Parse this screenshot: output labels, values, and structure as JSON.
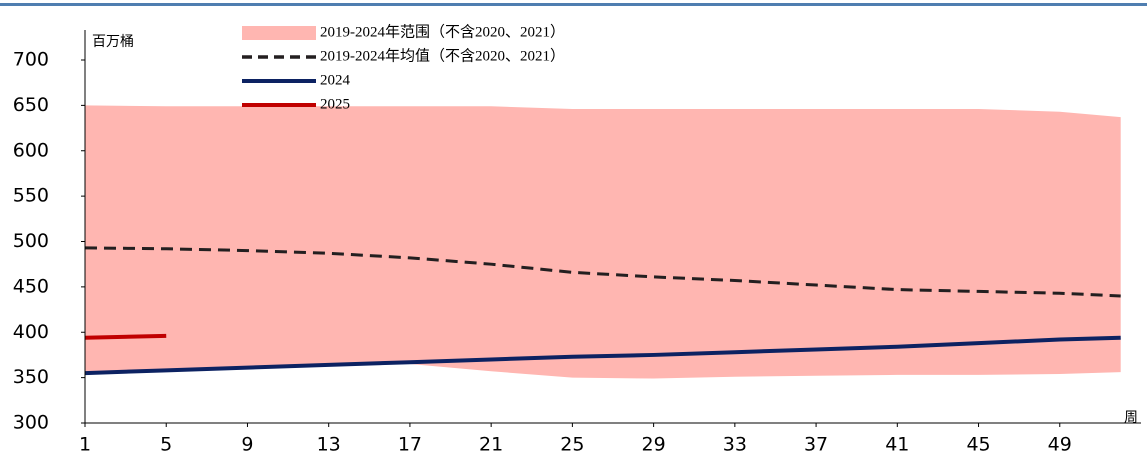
{
  "chart_data": {
    "type": "line",
    "ylabel": "百万桶",
    "xlabel": "周",
    "x": [
      1,
      5,
      9,
      13,
      17,
      21,
      25,
      29,
      33,
      37,
      41,
      45,
      49,
      52
    ],
    "band": {
      "name": "2019-2024年范围（不含2020、2021）",
      "color": "#ffb6b1",
      "upper": [
        650,
        649,
        649,
        649,
        649,
        649,
        646,
        646,
        646,
        646,
        646,
        646,
        643,
        637
      ],
      "lower": [
        355,
        358,
        361,
        364,
        365,
        357,
        350,
        349,
        351,
        352,
        353,
        353,
        354,
        356
      ]
    },
    "series": [
      {
        "name": "2019-2024年均值（不含2020、2021）",
        "color": "#231f20",
        "dash": true,
        "values": [
          493,
          492,
          490,
          487,
          482,
          475,
          466,
          461,
          457,
          452,
          447,
          445,
          443,
          440
        ]
      },
      {
        "name": "2024",
        "color": "#0c2262",
        "values": [
          355,
          358,
          361,
          364,
          367,
          370,
          373,
          375,
          378,
          381,
          384,
          388,
          392,
          394
        ]
      },
      {
        "name": "2025",
        "color": "#c00000",
        "values": [
          394,
          396,
          null,
          null,
          null,
          null,
          null,
          null,
          null,
          null,
          null,
          null,
          null,
          null
        ]
      }
    ],
    "xlim": [
      1,
      53
    ],
    "xticks": [
      1,
      5,
      9,
      13,
      17,
      21,
      25,
      29,
      33,
      37,
      41,
      45,
      49
    ],
    "ylim": [
      300,
      700
    ],
    "yticks": [
      300,
      350,
      400,
      450,
      500,
      550,
      600,
      650,
      700
    ]
  }
}
